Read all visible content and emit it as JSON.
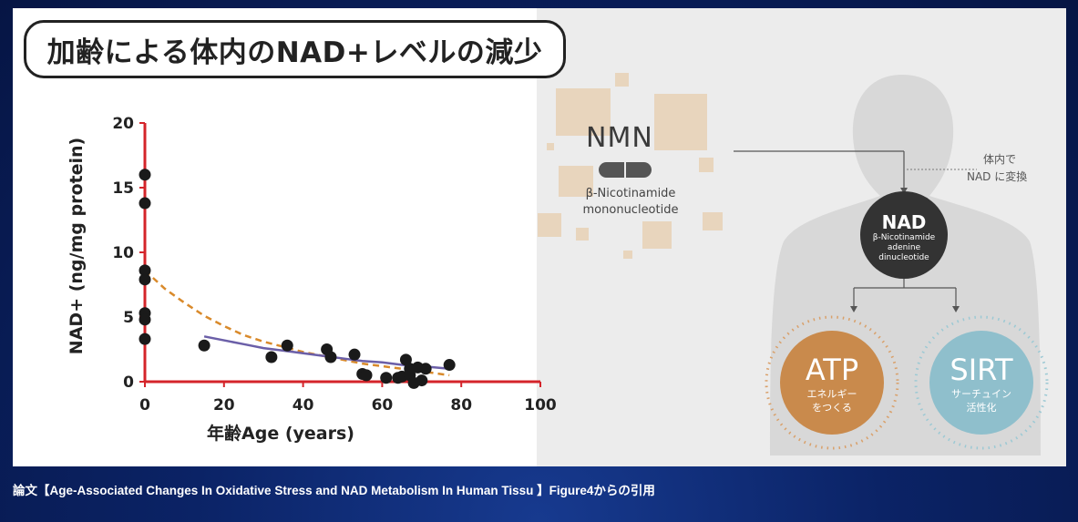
{
  "title": "加齢による体内のNAD+レベルの減少",
  "caption": "論文【Age-Associated Changes In Oxidative Stress and NAD Metabolism In Human Tissu 】Figure4からの引用",
  "chart_data": {
    "type": "scatter",
    "title": "",
    "xlabel": "年齢Age (years)",
    "ylabel": "NAD+ (ng/mg protein)",
    "xlim": [
      0,
      100
    ],
    "ylim": [
      0,
      20
    ],
    "xticks": [
      "0",
      "20",
      "40",
      "60",
      "80",
      "100"
    ],
    "yticks": [
      "0",
      "5",
      "10",
      "15",
      "20"
    ],
    "xtick_values": [
      0,
      20,
      40,
      60,
      80,
      100
    ],
    "ytick_values": [
      0,
      5,
      10,
      15,
      20
    ],
    "points": [
      [
        0,
        16.0
      ],
      [
        0,
        13.8
      ],
      [
        0,
        8.6
      ],
      [
        0,
        7.9
      ],
      [
        0,
        5.3
      ],
      [
        0,
        4.8
      ],
      [
        0,
        3.3
      ],
      [
        15,
        2.8
      ],
      [
        32,
        1.9
      ],
      [
        36,
        2.8
      ],
      [
        46,
        2.5
      ],
      [
        47,
        1.9
      ],
      [
        53,
        2.1
      ],
      [
        55,
        0.6
      ],
      [
        56,
        0.5
      ],
      [
        61,
        0.3
      ],
      [
        64,
        0.3
      ],
      [
        65,
        0.4
      ],
      [
        66,
        1.7
      ],
      [
        67,
        0.5
      ],
      [
        67,
        1.0
      ],
      [
        68,
        -0.1
      ],
      [
        69,
        1.1
      ],
      [
        70,
        0.1
      ],
      [
        71,
        1.0
      ],
      [
        77,
        1.3
      ]
    ],
    "fits": [
      {
        "style": "dashed",
        "color": "#d98a2b",
        "x": [
          0,
          5,
          10,
          15,
          20,
          25,
          30,
          35,
          40,
          45,
          50,
          55,
          60,
          65,
          70,
          77
        ],
        "y": [
          8.6,
          7.2,
          6.1,
          5.1,
          4.3,
          3.6,
          3.1,
          2.7,
          2.3,
          2.0,
          1.7,
          1.4,
          1.2,
          1.0,
          0.8,
          0.5
        ]
      },
      {
        "style": "solid",
        "color": "#6b5fa8",
        "x": [
          15,
          20,
          25,
          30,
          35,
          40,
          45,
          50,
          55,
          60,
          65,
          70,
          77
        ],
        "y": [
          3.5,
          3.2,
          2.9,
          2.6,
          2.4,
          2.2,
          2.0,
          1.8,
          1.6,
          1.5,
          1.3,
          1.2,
          1.0
        ]
      }
    ],
    "point_color": "#1a1a1a",
    "axis_color": "#d4242a"
  },
  "diagram": {
    "nmn": {
      "title": "NMN",
      "sub1": "β-Nicotinamide",
      "sub2": "mononucleotide"
    },
    "note": {
      "line1": "体内で",
      "line2": "NAD に変換"
    },
    "nad": {
      "title": "NAD",
      "sub1": "β-Nicotinamide",
      "sub2": "adenine",
      "sub3": "dinucleotide",
      "color": "#333333"
    },
    "atp": {
      "title": "ATP",
      "sub1": "エネルギー",
      "sub2": "をつくる",
      "color": "#c98a4c"
    },
    "sirt": {
      "title": "SIRT",
      "sub1": "サーチュイン",
      "sub2": "活性化",
      "color": "#8fbfcc"
    }
  }
}
